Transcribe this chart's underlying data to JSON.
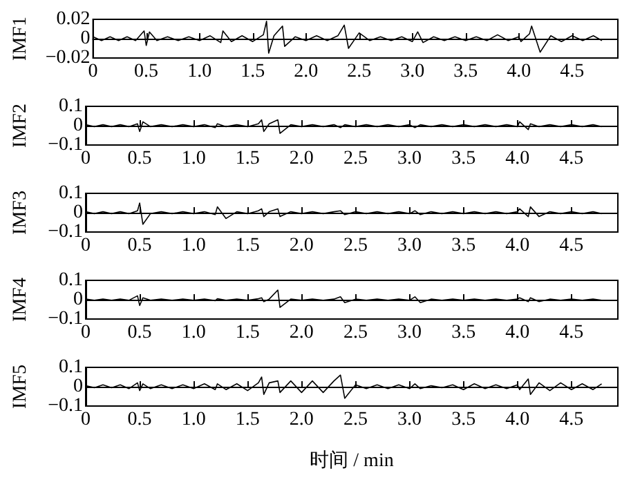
{
  "chart_data": [
    {
      "type": "line",
      "ylabel": "IMF1",
      "color": "#000000",
      "xlim": [
        0,
        4.93
      ],
      "ylim": [
        -0.02,
        0.02
      ],
      "xticks": [
        0,
        0.5,
        {
          "value": 1,
          "label": "1.0"
        },
        1.5,
        {
          "value": 2,
          "label": "2.0"
        },
        2.5,
        {
          "value": 3,
          "label": "3.0"
        },
        3.5,
        {
          "value": 4,
          "label": "4.0"
        },
        4.5
      ],
      "yticks": [
        {
          "value": -0.02,
          "label": "−0.02"
        },
        0,
        0.02
      ],
      "x": [
        0,
        0.08,
        0.16,
        0.24,
        0.32,
        0.4,
        0.48,
        0.5,
        0.53,
        0.6,
        0.7,
        0.8,
        0.9,
        1.0,
        1.1,
        1.2,
        1.22,
        1.3,
        1.4,
        1.5,
        1.6,
        1.63,
        1.65,
        1.7,
        1.78,
        1.8,
        1.9,
        2.0,
        2.1,
        2.2,
        2.3,
        2.36,
        2.4,
        2.5,
        2.6,
        2.7,
        2.8,
        2.9,
        3.0,
        3.05,
        3.1,
        3.2,
        3.3,
        3.4,
        3.5,
        3.6,
        3.7,
        3.8,
        3.9,
        4.0,
        4.02,
        4.1,
        4.12,
        4.2,
        4.3,
        4.4,
        4.5,
        4.6,
        4.7,
        4.78
      ],
      "values": [
        0.002,
        -0.002,
        0.002,
        -0.002,
        0.002,
        -0.002,
        0.008,
        -0.007,
        0.007,
        -0.002,
        0.002,
        -0.002,
        0.002,
        -0.002,
        0.003,
        -0.004,
        0.008,
        -0.003,
        0.003,
        -0.003,
        0.004,
        0.018,
        -0.015,
        0.003,
        0.013,
        -0.008,
        0.002,
        -0.002,
        0.003,
        -0.002,
        0.003,
        0.014,
        -0.01,
        0.006,
        -0.002,
        0.002,
        -0.002,
        0.002,
        -0.003,
        0.007,
        -0.004,
        0.002,
        -0.002,
        0.002,
        -0.002,
        0.002,
        -0.002,
        0.004,
        -0.002,
        0.002,
        -0.003,
        0.005,
        0.013,
        -0.014,
        0.003,
        -0.003,
        0.003,
        -0.002,
        0.003,
        -0.002
      ]
    },
    {
      "type": "line",
      "ylabel": "IMF2",
      "color": "#000000",
      "xlim": [
        0,
        4.93
      ],
      "ylim": [
        -0.1,
        0.1
      ],
      "xticks": [
        0,
        0.5,
        {
          "value": 1,
          "label": "1.0"
        },
        1.5,
        {
          "value": 2,
          "label": "2.0"
        },
        2.5,
        {
          "value": 3,
          "label": "3.0"
        },
        3.5,
        {
          "value": 4,
          "label": "4.0"
        },
        4.5
      ],
      "yticks": [
        {
          "value": -0.1,
          "label": "−0.1"
        },
        0,
        0.1
      ],
      "x": [
        0,
        0.08,
        0.16,
        0.24,
        0.32,
        0.4,
        0.48,
        0.5,
        0.53,
        0.6,
        0.7,
        0.8,
        0.9,
        1.0,
        1.1,
        1.2,
        1.22,
        1.3,
        1.4,
        1.5,
        1.6,
        1.63,
        1.65,
        1.7,
        1.78,
        1.8,
        1.9,
        2.0,
        2.1,
        2.2,
        2.3,
        2.36,
        2.4,
        2.5,
        2.6,
        2.7,
        2.8,
        2.9,
        3.0,
        3.05,
        3.1,
        3.2,
        3.3,
        3.4,
        3.5,
        3.6,
        3.7,
        3.8,
        3.9,
        4.0,
        4.02,
        4.1,
        4.12,
        4.2,
        4.3,
        4.4,
        4.5,
        4.6,
        4.7,
        4.78
      ],
      "values": [
        0.005,
        -0.005,
        0.005,
        -0.005,
        0.005,
        -0.005,
        0.01,
        -0.03,
        0.02,
        -0.005,
        0.005,
        -0.005,
        0.005,
        -0.005,
        0.005,
        -0.01,
        0.01,
        -0.005,
        0.005,
        -0.005,
        0.01,
        0.03,
        -0.03,
        0.01,
        0.03,
        -0.04,
        0.005,
        -0.005,
        0.005,
        -0.005,
        0.005,
        -0.01,
        0.005,
        -0.005,
        0.005,
        -0.005,
        0.005,
        -0.005,
        0.005,
        -0.01,
        0.005,
        -0.005,
        0.005,
        -0.005,
        0.005,
        -0.005,
        0.005,
        -0.005,
        0.005,
        -0.005,
        0.02,
        -0.02,
        0.01,
        -0.005,
        0.005,
        -0.005,
        0.005,
        -0.005,
        0.005,
        -0.005
      ]
    },
    {
      "type": "line",
      "ylabel": "IMF3",
      "color": "#000000",
      "xlim": [
        0,
        4.93
      ],
      "ylim": [
        -0.1,
        0.1
      ],
      "xticks": [
        0,
        0.5,
        {
          "value": 1,
          "label": "1.0"
        },
        1.5,
        {
          "value": 2,
          "label": "2.0"
        },
        2.5,
        {
          "value": 3,
          "label": "3.0"
        },
        3.5,
        {
          "value": 4,
          "label": "4.0"
        },
        4.5
      ],
      "yticks": [
        {
          "value": -0.1,
          "label": "−0.1"
        },
        0,
        0.1
      ],
      "x": [
        0,
        0.08,
        0.16,
        0.24,
        0.32,
        0.4,
        0.48,
        0.5,
        0.53,
        0.6,
        0.7,
        0.8,
        0.9,
        1.0,
        1.1,
        1.2,
        1.22,
        1.3,
        1.4,
        1.5,
        1.6,
        1.63,
        1.65,
        1.7,
        1.78,
        1.8,
        1.9,
        2.0,
        2.1,
        2.2,
        2.3,
        2.36,
        2.4,
        2.5,
        2.6,
        2.7,
        2.8,
        2.9,
        3.0,
        3.05,
        3.1,
        3.2,
        3.3,
        3.4,
        3.5,
        3.6,
        3.7,
        3.8,
        3.9,
        4.0,
        4.02,
        4.1,
        4.12,
        4.2,
        4.3,
        4.4,
        4.5,
        4.6,
        4.7,
        4.78
      ],
      "values": [
        0.005,
        -0.005,
        0.005,
        -0.005,
        0.005,
        -0.005,
        0.01,
        0.05,
        -0.06,
        -0.005,
        0.005,
        -0.005,
        0.005,
        -0.005,
        0.005,
        -0.01,
        0.03,
        -0.03,
        0.005,
        -0.005,
        0.01,
        0.02,
        -0.02,
        0.005,
        0.02,
        -0.02,
        0.005,
        -0.005,
        0.005,
        -0.005,
        0.005,
        0.01,
        -0.01,
        0.005,
        -0.005,
        0.005,
        -0.005,
        0.005,
        -0.005,
        0.01,
        -0.01,
        0.005,
        -0.005,
        0.005,
        -0.005,
        0.005,
        -0.005,
        0.005,
        -0.005,
        0.005,
        0.02,
        -0.02,
        0.03,
        -0.02,
        0.005,
        -0.005,
        0.005,
        -0.005,
        0.005,
        -0.005
      ]
    },
    {
      "type": "line",
      "ylabel": "IMF4",
      "color": "#000000",
      "xlim": [
        0,
        4.93
      ],
      "ylim": [
        -0.1,
        0.1
      ],
      "xticks": [
        0,
        0.5,
        {
          "value": 1,
          "label": "1.0"
        },
        1.5,
        {
          "value": 2,
          "label": "2.0"
        },
        2.5,
        {
          "value": 3,
          "label": "3.0"
        },
        3.5,
        {
          "value": 4,
          "label": "4.0"
        },
        4.5
      ],
      "yticks": [
        {
          "value": -0.1,
          "label": "−0.1"
        },
        0,
        0.1
      ],
      "x": [
        0,
        0.08,
        0.16,
        0.24,
        0.32,
        0.4,
        0.48,
        0.5,
        0.53,
        0.6,
        0.7,
        0.8,
        0.9,
        1.0,
        1.1,
        1.2,
        1.22,
        1.3,
        1.4,
        1.5,
        1.6,
        1.63,
        1.65,
        1.7,
        1.78,
        1.8,
        1.9,
        2.0,
        2.1,
        2.2,
        2.3,
        2.36,
        2.4,
        2.5,
        2.6,
        2.7,
        2.8,
        2.9,
        3.0,
        3.05,
        3.1,
        3.2,
        3.3,
        3.4,
        3.5,
        3.6,
        3.7,
        3.8,
        3.9,
        4.0,
        4.02,
        4.1,
        4.12,
        4.2,
        4.3,
        4.4,
        4.5,
        4.6,
        4.7,
        4.78
      ],
      "values": [
        0.003,
        -0.003,
        0.003,
        -0.003,
        0.003,
        -0.003,
        0.02,
        -0.03,
        0.01,
        -0.003,
        0.003,
        -0.003,
        0.003,
        -0.003,
        0.003,
        -0.005,
        0.005,
        -0.003,
        0.003,
        -0.003,
        0.005,
        0.01,
        -0.01,
        0.003,
        0.05,
        -0.04,
        0.003,
        -0.003,
        0.003,
        -0.003,
        0.003,
        0.015,
        -0.015,
        0.003,
        -0.003,
        0.003,
        -0.003,
        0.003,
        -0.003,
        0.015,
        -0.015,
        0.003,
        -0.003,
        0.003,
        -0.003,
        0.003,
        -0.003,
        0.003,
        -0.003,
        0.003,
        0.01,
        -0.01,
        0.01,
        -0.01,
        0.003,
        -0.003,
        0.003,
        -0.003,
        0.003,
        -0.003
      ]
    },
    {
      "type": "line",
      "ylabel": "IMF5",
      "xlabel": "时间 / min",
      "color": "#000000",
      "xlim": [
        0,
        4.93
      ],
      "ylim": [
        -0.1,
        0.1
      ],
      "xticks": [
        0,
        0.5,
        {
          "value": 1,
          "label": "1.0"
        },
        1.5,
        {
          "value": 2,
          "label": "2.0"
        },
        2.5,
        {
          "value": 3,
          "label": "3.0"
        },
        3.5,
        {
          "value": 4,
          "label": "4.0"
        },
        4.5
      ],
      "yticks": [
        {
          "value": -0.1,
          "label": "−0.1"
        },
        0,
        0.1
      ],
      "x": [
        0,
        0.08,
        0.16,
        0.24,
        0.32,
        0.4,
        0.48,
        0.5,
        0.53,
        0.6,
        0.7,
        0.8,
        0.9,
        1.0,
        1.1,
        1.2,
        1.22,
        1.3,
        1.4,
        1.5,
        1.6,
        1.63,
        1.65,
        1.7,
        1.78,
        1.8,
        1.9,
        2.0,
        2.1,
        2.2,
        2.3,
        2.36,
        2.4,
        2.5,
        2.6,
        2.7,
        2.8,
        2.9,
        3.0,
        3.05,
        3.1,
        3.2,
        3.3,
        3.4,
        3.5,
        3.6,
        3.7,
        3.8,
        3.9,
        4.0,
        4.02,
        4.1,
        4.12,
        4.2,
        4.3,
        4.4,
        4.5,
        4.6,
        4.7,
        4.78
      ],
      "values": [
        0.005,
        -0.005,
        0.01,
        -0.005,
        0.01,
        -0.01,
        0.02,
        -0.02,
        0.015,
        -0.01,
        0.01,
        -0.01,
        0.01,
        -0.01,
        0.015,
        -0.015,
        0.015,
        -0.015,
        0.015,
        -0.02,
        0.02,
        0.05,
        -0.04,
        0.02,
        0.03,
        -0.03,
        0.03,
        -0.03,
        0.03,
        -0.03,
        0.03,
        0.06,
        -0.06,
        0.01,
        -0.01,
        0.01,
        -0.01,
        0.01,
        -0.01,
        0.015,
        -0.01,
        0.005,
        -0.005,
        0.01,
        -0.015,
        0.015,
        -0.01,
        0.01,
        -0.01,
        0.01,
        -0.015,
        0.04,
        -0.04,
        0.02,
        -0.02,
        0.02,
        -0.015,
        0.015,
        -0.015,
        0.015
      ]
    }
  ]
}
